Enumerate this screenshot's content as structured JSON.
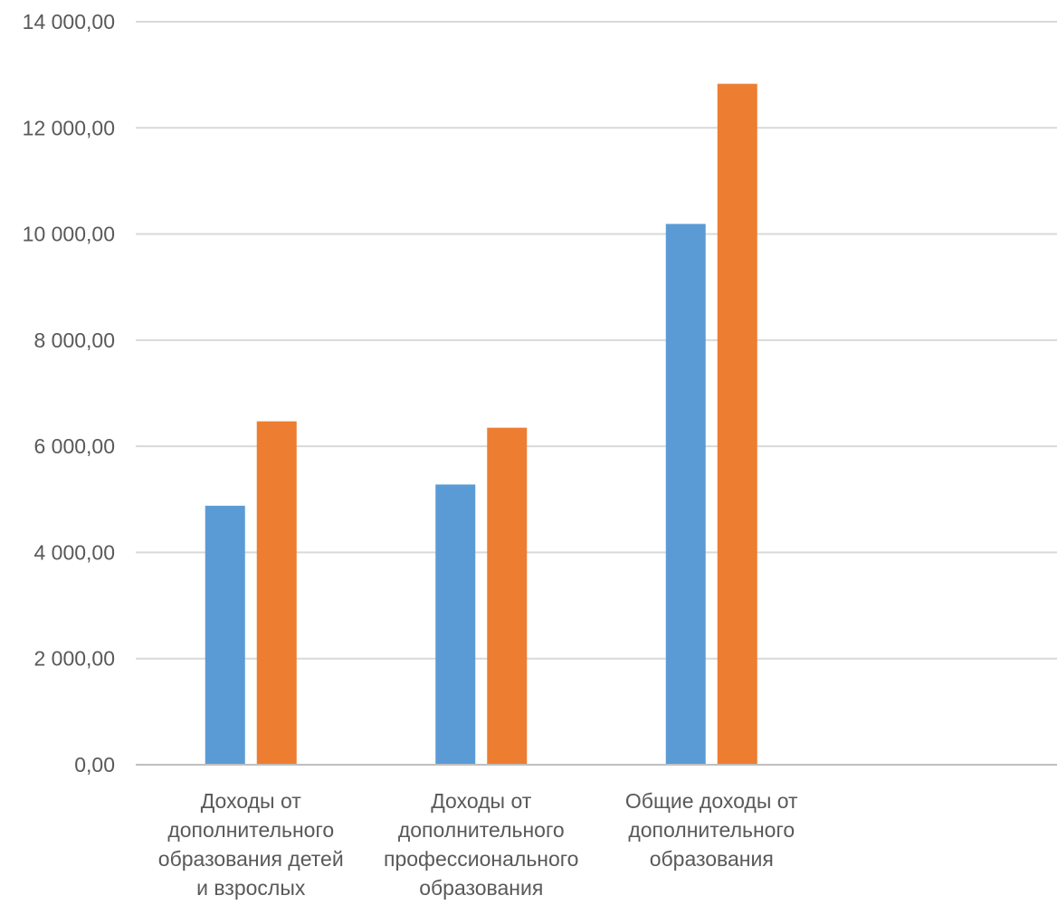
{
  "chart_data": {
    "type": "bar",
    "title": "",
    "xlabel": "",
    "ylabel": "",
    "ylim": [
      0,
      14000
    ],
    "yticks": [
      "0,00",
      "2 000,00",
      "4 000,00",
      "6 000,00",
      "8 000,00",
      "10 000,00",
      "12 000,00",
      "14 000,00"
    ],
    "ytick_values": [
      0,
      2000,
      4000,
      6000,
      8000,
      10000,
      12000,
      14000
    ],
    "grid": true,
    "legend": "none",
    "categories": [
      [
        "Доходы от",
        "дополнительного",
        "образования детей",
        "и взрослых"
      ],
      [
        "Доходы от",
        "дополнительного",
        "профессионального",
        "образования"
      ],
      [
        "Общие доходы от",
        "дополнительного",
        "образования"
      ],
      [
        ""
      ]
    ],
    "series": [
      {
        "color": "#5B9BD5",
        "values": [
          4880,
          5280,
          10190,
          null
        ]
      },
      {
        "color": "#ED7D31",
        "values": [
          6470,
          6350,
          12830,
          null
        ]
      }
    ]
  }
}
